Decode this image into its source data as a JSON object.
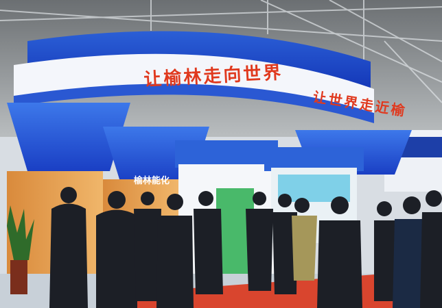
{
  "banner": {
    "left_text": "让榆林走向世界",
    "right_text": "让世界走近榆"
  },
  "sign": {
    "text": "榆林能化"
  }
}
